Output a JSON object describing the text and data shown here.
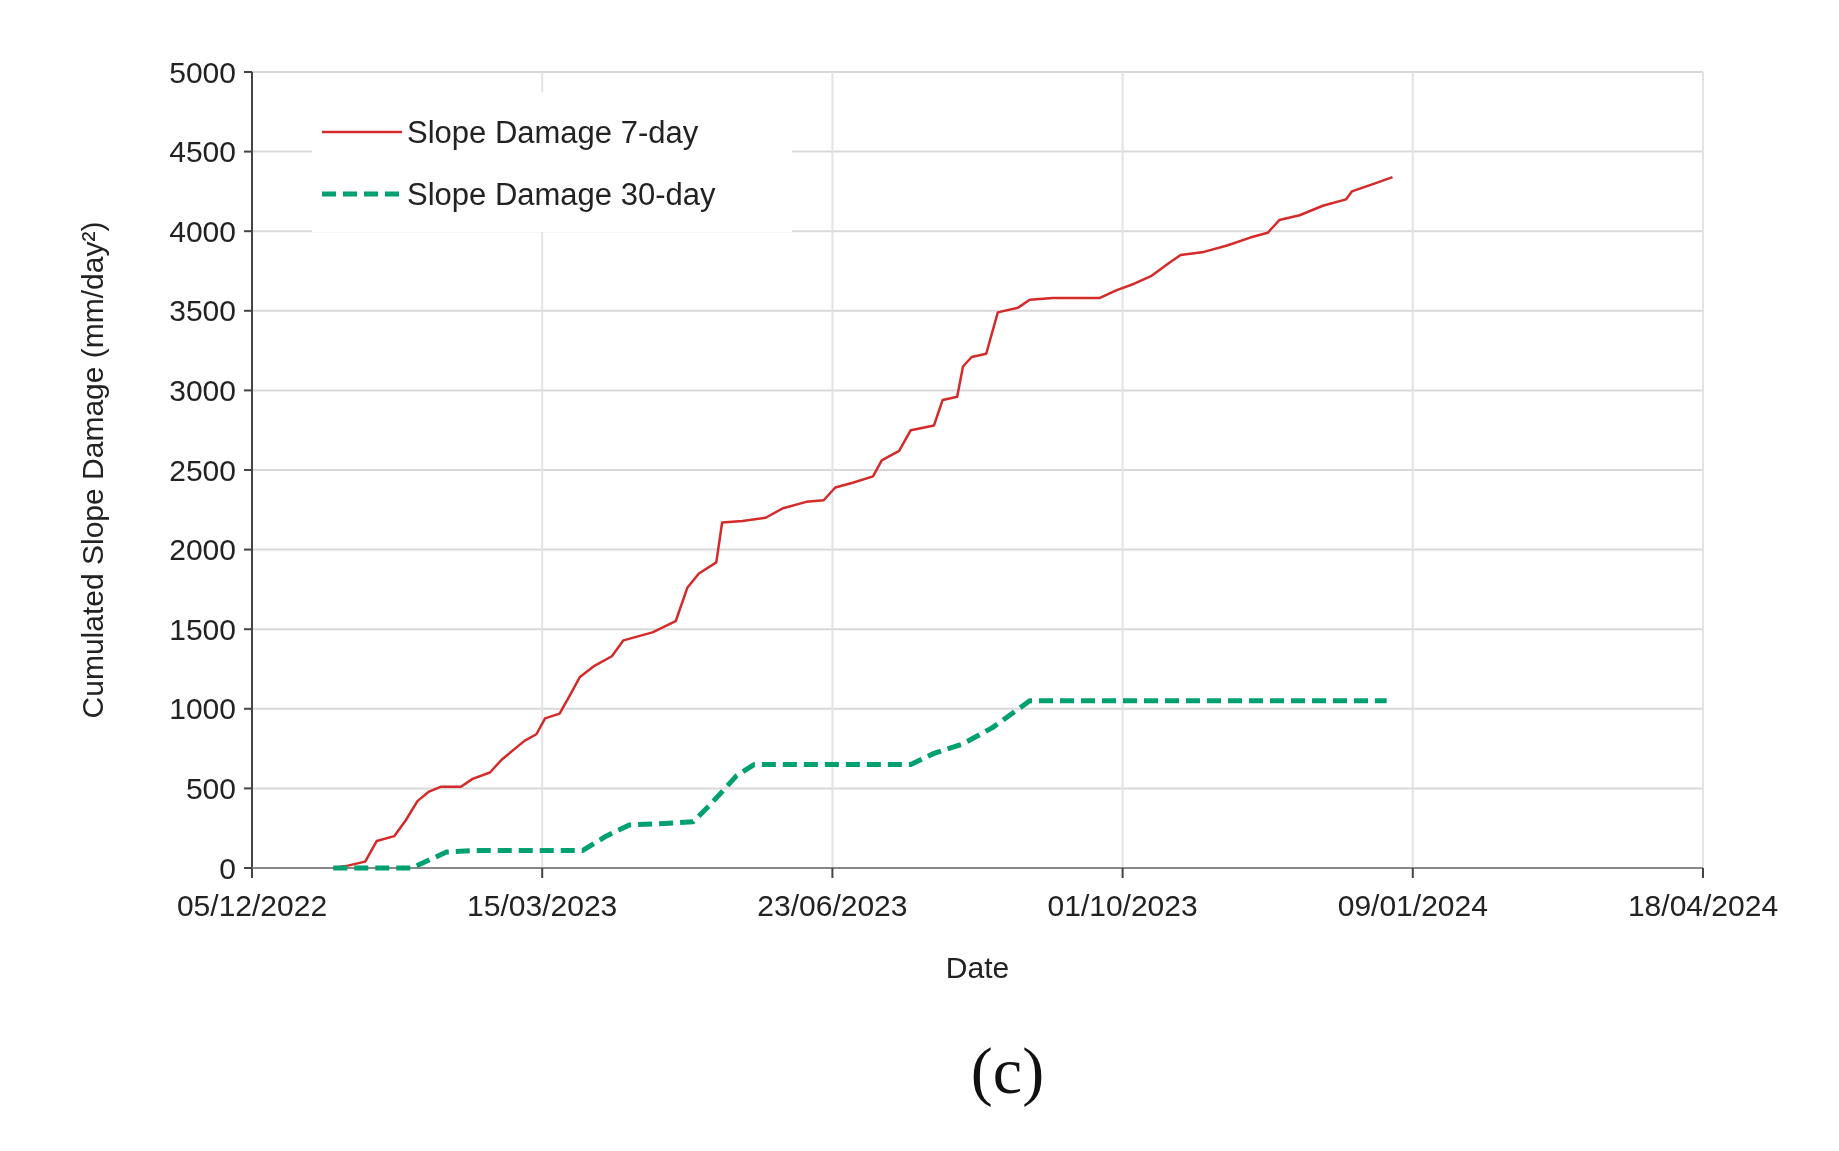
{
  "chart_data": {
    "type": "line",
    "xlabel": "Date",
    "ylabel": "Cumulated Slope Damage (mm/day²)",
    "annotations": [
      "(c)"
    ],
    "xlim": [
      "2022-12-05",
      "2024-04-18"
    ],
    "xticks": [
      {
        "value": "2022-12-05",
        "label": "05/12/2022"
      },
      {
        "value": "2023-03-15",
        "label": "15/03/2023"
      },
      {
        "value": "2023-06-23",
        "label": "23/06/2023"
      },
      {
        "value": "2023-10-01",
        "label": "01/10/2023"
      },
      {
        "value": "2024-01-09",
        "label": "09/01/2024"
      },
      {
        "value": "2024-04-18",
        "label": "18/04/2024"
      }
    ],
    "ylim": [
      0,
      5000
    ],
    "yticks": [
      0,
      500,
      1000,
      1500,
      2000,
      2500,
      3000,
      3500,
      4000,
      4500,
      5000
    ],
    "grid": true,
    "legend": "top left",
    "series": [
      {
        "name": "Slope Damage 7-day",
        "color": "#d42a2a",
        "line_style": "solid",
        "x": [
          "2023-01-02",
          "2023-01-07",
          "2023-01-13",
          "2023-01-17",
          "2023-01-23",
          "2023-01-27",
          "2023-01-31",
          "2023-02-04",
          "2023-02-08",
          "2023-02-15",
          "2023-02-19",
          "2023-02-25",
          "2023-03-01",
          "2023-03-09",
          "2023-03-13",
          "2023-03-16",
          "2023-03-21",
          "2023-03-25",
          "2023-03-28",
          "2023-04-02",
          "2023-04-08",
          "2023-04-12",
          "2023-04-22",
          "2023-04-30",
          "2023-05-04",
          "2023-05-08",
          "2023-05-14",
          "2023-05-16",
          "2023-05-23",
          "2023-05-31",
          "2023-06-06",
          "2023-06-14",
          "2023-06-20",
          "2023-06-24",
          "2023-06-30",
          "2023-07-07",
          "2023-07-10",
          "2023-07-16",
          "2023-07-20",
          "2023-07-28",
          "2023-07-31",
          "2023-08-05",
          "2023-08-07",
          "2023-08-10",
          "2023-08-15",
          "2023-08-19",
          "2023-08-26",
          "2023-08-30",
          "2023-09-07",
          "2023-09-23",
          "2023-09-29",
          "2023-10-05",
          "2023-10-11",
          "2023-10-17",
          "2023-10-21",
          "2023-10-29",
          "2023-11-06",
          "2023-11-14",
          "2023-11-20",
          "2023-11-24",
          "2023-12-01",
          "2023-12-09",
          "2023-12-17",
          "2023-12-19",
          "2023-12-27",
          "2024-01-02"
        ],
        "values": [
          0,
          15,
          40,
          170,
          200,
          300,
          420,
          480,
          510,
          510,
          560,
          600,
          680,
          800,
          840,
          940,
          970,
          1100,
          1200,
          1270,
          1330,
          1430,
          1480,
          1550,
          1760,
          1850,
          1920,
          2170,
          2180,
          2200,
          2260,
          2300,
          2310,
          2390,
          2420,
          2460,
          2560,
          2620,
          2750,
          2780,
          2940,
          2960,
          3150,
          3210,
          3230,
          3490,
          3520,
          3570,
          3580,
          3580,
          3630,
          3670,
          3720,
          3800,
          3850,
          3870,
          3910,
          3960,
          3990,
          4070,
          4100,
          4160,
          4200,
          4250,
          4300,
          4340
        ]
      },
      {
        "name": "Slope Damage 30-day",
        "color": "#00a070",
        "line_style": "dashed",
        "x": [
          "2023-01-02",
          "2023-01-29",
          "2023-02-04",
          "2023-02-10",
          "2023-02-19",
          "2023-03-29",
          "2023-04-06",
          "2023-04-14",
          "2023-04-26",
          "2023-05-06",
          "2023-05-12",
          "2023-05-21",
          "2023-05-27",
          "2023-07-20",
          "2023-07-28",
          "2023-08-07",
          "2023-08-17",
          "2023-08-30",
          "2023-12-31"
        ],
        "values": [
          0,
          0,
          50,
          100,
          110,
          110,
          200,
          270,
          280,
          290,
          400,
          580,
          650,
          650,
          720,
          780,
          880,
          1050,
          1050
        ]
      }
    ]
  }
}
